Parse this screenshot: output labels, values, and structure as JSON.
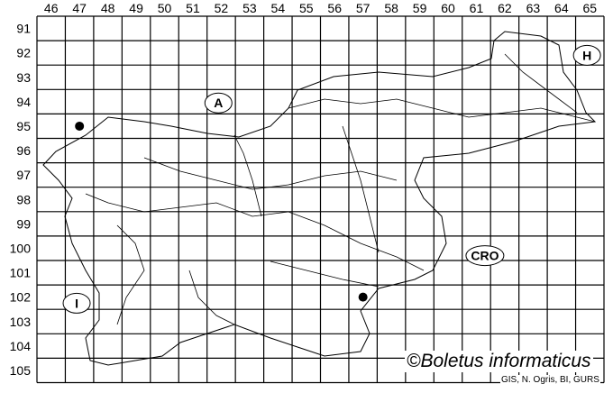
{
  "grid": {
    "columns": [
      "46",
      "47",
      "48",
      "49",
      "50",
      "51",
      "52",
      "53",
      "54",
      "55",
      "56",
      "57",
      "58",
      "59",
      "60",
      "61",
      "62",
      "63",
      "64",
      "65"
    ],
    "rows": [
      "91",
      "92",
      "93",
      "94",
      "95",
      "96",
      "97",
      "98",
      "99",
      "100",
      "101",
      "102",
      "103",
      "104",
      "105"
    ]
  },
  "country_labels": [
    {
      "text": "A",
      "col": "52",
      "row": "94"
    },
    {
      "text": "H",
      "col": "65",
      "row": "92"
    },
    {
      "text": "CRO",
      "col": "61",
      "row": "100"
    },
    {
      "text": "I",
      "col": "47",
      "row": "102"
    }
  ],
  "records": [
    {
      "col": "47",
      "row": "95"
    },
    {
      "col": "57",
      "row": "102"
    }
  ],
  "credit": "©Boletus informaticus",
  "source": "GIS, N. Ogris, BI, GURS",
  "colors": {
    "lines": "#000000",
    "background": "#ffffff",
    "records": "#000000"
  }
}
